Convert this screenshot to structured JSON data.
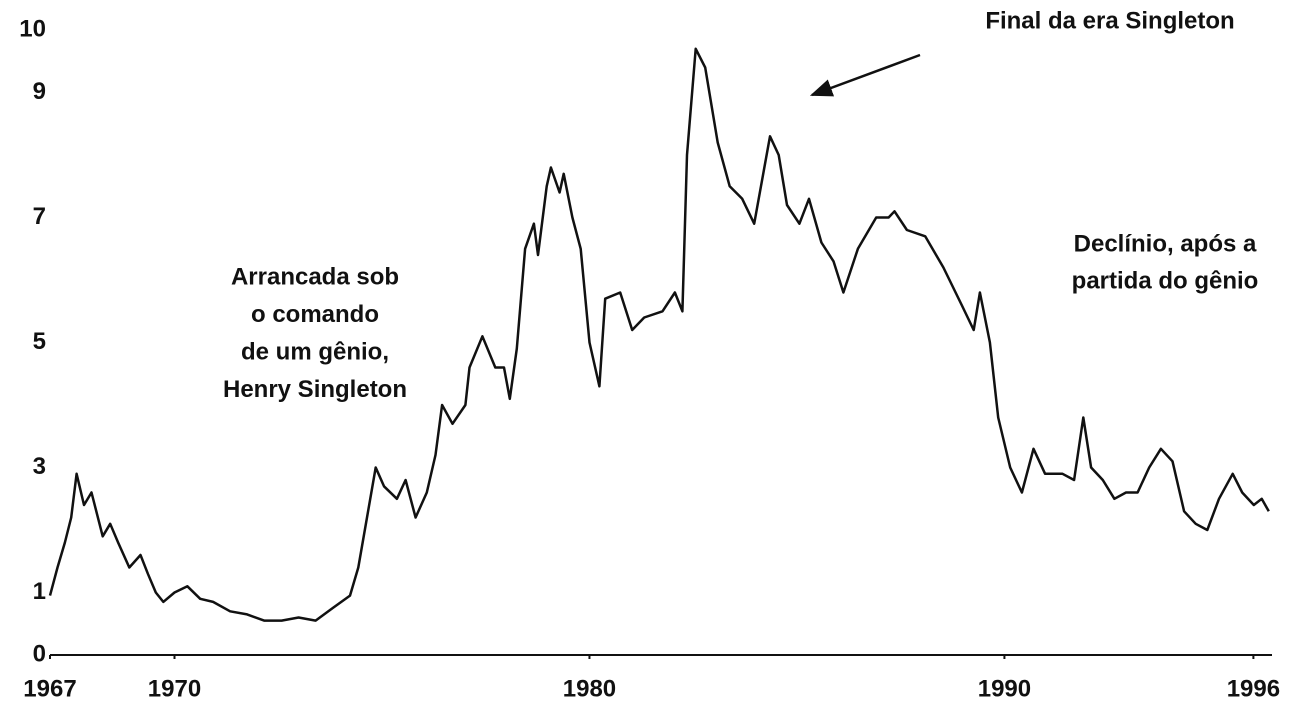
{
  "chart_data": {
    "type": "line",
    "x": [
      1967.0,
      1967.18,
      1967.36,
      1967.51,
      1967.64,
      1967.82,
      1968.0,
      1968.27,
      1968.45,
      1968.64,
      1968.91,
      1969.18,
      1969.36,
      1969.55,
      1969.73,
      1970.0,
      1970.31,
      1970.62,
      1970.93,
      1971.34,
      1971.75,
      1972.16,
      1972.58,
      1972.99,
      1973.4,
      1973.81,
      1974.23,
      1974.43,
      1974.64,
      1974.85,
      1975.05,
      1975.36,
      1975.57,
      1975.81,
      1976.08,
      1976.29,
      1976.45,
      1976.7,
      1977.01,
      1977.11,
      1977.42,
      1977.73,
      1977.94,
      1978.08,
      1978.25,
      1978.45,
      1978.66,
      1978.76,
      1978.97,
      1979.07,
      1979.28,
      1979.38,
      1979.59,
      1979.79,
      1980.0,
      1980.24,
      1980.38,
      1980.74,
      1981.03,
      1981.32,
      1981.76,
      1982.06,
      1982.24,
      1982.35,
      1982.56,
      1982.79,
      1983.09,
      1983.38,
      1983.68,
      1983.97,
      1984.35,
      1984.56,
      1984.76,
      1985.06,
      1985.29,
      1985.59,
      1985.88,
      1986.12,
      1986.47,
      1986.91,
      1987.21,
      1987.35,
      1987.65,
      1988.09,
      1988.53,
      1988.97,
      1989.26,
      1989.41,
      1989.65,
      1989.85,
      1990.14,
      1990.42,
      1990.7,
      1990.98,
      1991.4,
      1991.68,
      1991.9,
      1992.09,
      1992.37,
      1992.65,
      1992.93,
      1993.21,
      1993.49,
      1993.77,
      1994.05,
      1994.33,
      1994.61,
      1994.89,
      1995.17,
      1995.5,
      1995.73,
      1996.01,
      1996.2,
      1996.37
    ],
    "values": [
      0.95,
      1.4,
      1.8,
      2.2,
      2.9,
      2.4,
      2.6,
      1.9,
      2.1,
      1.8,
      1.4,
      1.6,
      1.3,
      1.0,
      0.85,
      1.0,
      1.1,
      0.9,
      0.85,
      0.7,
      0.65,
      0.55,
      0.55,
      0.6,
      0.55,
      0.75,
      0.95,
      1.4,
      2.2,
      3.0,
      2.7,
      2.5,
      2.8,
      2.2,
      2.6,
      3.2,
      4.0,
      3.7,
      4.0,
      4.6,
      5.1,
      4.6,
      4.6,
      4.1,
      4.9,
      6.5,
      6.9,
      6.4,
      7.5,
      7.8,
      7.4,
      7.7,
      7.0,
      6.5,
      5.0,
      4.3,
      5.7,
      5.8,
      5.2,
      5.4,
      5.5,
      5.8,
      5.5,
      8.0,
      9.7,
      9.4,
      8.2,
      7.5,
      7.3,
      6.9,
      8.3,
      8.0,
      7.2,
      6.9,
      7.3,
      6.6,
      6.3,
      5.8,
      6.5,
      7.0,
      7.0,
      7.1,
      6.8,
      6.7,
      6.2,
      5.6,
      5.2,
      5.8,
      5.0,
      3.8,
      3.0,
      2.6,
      3.3,
      2.9,
      2.9,
      2.8,
      3.8,
      3.0,
      2.8,
      2.5,
      2.6,
      2.6,
      3.0,
      3.3,
      3.1,
      2.3,
      2.1,
      2.0,
      2.5,
      2.9,
      2.6,
      2.4,
      2.5,
      2.3
    ],
    "color": "#111111",
    "xlim": [
      1967,
      1996.4
    ],
    "xticks": [
      1967,
      1970,
      1980,
      1990,
      1996
    ],
    "ylim": [
      0,
      10
    ],
    "yticks": [
      0,
      1,
      3,
      5,
      7,
      9,
      10
    ],
    "annotations": [
      {
        "lines": [
          "Final da era Singleton"
        ]
      },
      {
        "lines": [
          "Arrancada sob",
          "o comando",
          "de um gênio,",
          "Henry Singleton"
        ]
      },
      {
        "lines": [
          "Declínio, após a",
          "partida do gênio"
        ]
      }
    ]
  }
}
